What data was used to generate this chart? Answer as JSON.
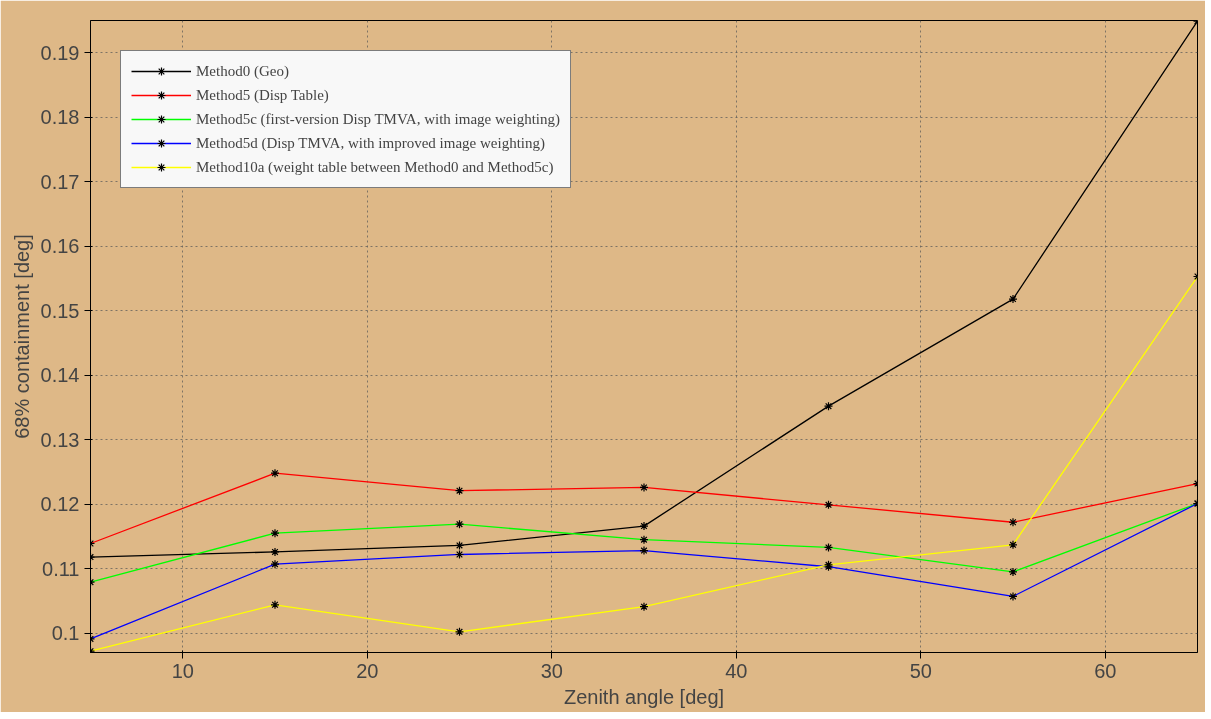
{
  "chart_data": {
    "type": "line",
    "xlabel": "Zenith angle [deg]",
    "ylabel": "68% containment [deg]",
    "x": [
      5,
      15,
      25,
      35,
      45,
      55,
      65
    ],
    "series": [
      {
        "name": "Method0 (Geo)",
        "color": "#000000",
        "values": [
          0.1118,
          0.1126,
          0.1136,
          0.1166,
          0.1352,
          0.1518,
          0.1949
        ]
      },
      {
        "name": "Method5 (Disp Table)",
        "color": "#ff0000",
        "values": [
          0.1139,
          0.1248,
          0.1221,
          0.1226,
          0.1199,
          0.1172,
          0.1232
        ]
      },
      {
        "name": "Method5c (first-version Disp TMVA, with image weighting)",
        "color": "#00ff00",
        "values": [
          0.1079,
          0.1155,
          0.1169,
          0.1145,
          0.1133,
          0.1095,
          0.1201
        ]
      },
      {
        "name": "Method5d (Disp TMVA, with improved image weighting)",
        "color": "#0000ff",
        "values": [
          0.0991,
          0.1107,
          0.1122,
          0.1128,
          0.1103,
          0.1057,
          0.1201
        ]
      },
      {
        "name": "Method10a (weight table between Method0 and Method5c)",
        "color": "#ffff00",
        "values": [
          0.0972,
          0.1044,
          0.1002,
          0.1041,
          0.1106,
          0.1137,
          0.1553
        ]
      }
    ],
    "xlim": [
      5,
      65
    ],
    "ylim": [
      0.097,
      0.195
    ],
    "xticks": [
      10,
      20,
      30,
      40,
      50,
      60
    ],
    "yticks": [
      0.1,
      0.11,
      0.12,
      0.13,
      0.14,
      0.15,
      0.16,
      0.17,
      0.18,
      0.19
    ],
    "grid": true,
    "legend": "top left",
    "marker": "cross",
    "line_style": "solid"
  }
}
